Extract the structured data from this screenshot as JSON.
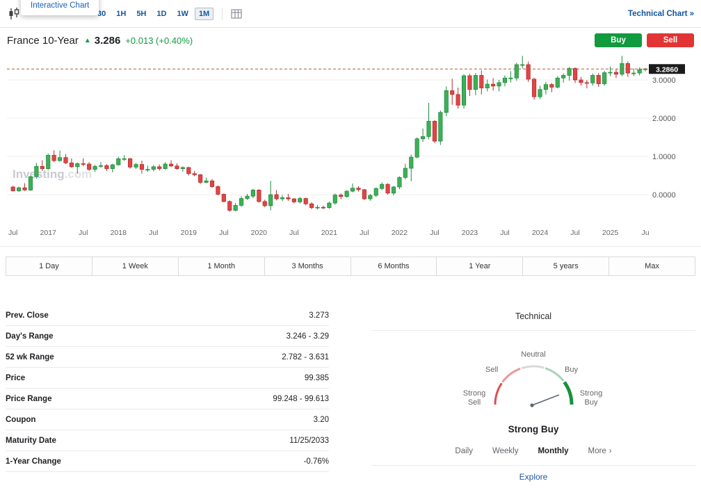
{
  "colors": {
    "link_blue": "#1256a0",
    "buy_green": "#119a3e",
    "sell_red": "#e23434",
    "change_green": "#0f9d45"
  },
  "toolbar": {
    "tooltip": "Interactive Chart",
    "timeframes": [
      "30",
      "1H",
      "5H",
      "1D",
      "1W",
      "1M"
    ],
    "selected_timeframe": "1M",
    "technical_chart_link": "Technical Chart »"
  },
  "header": {
    "title": "France 10-Year",
    "arrow": "▲",
    "price": "3.286",
    "change": "+0.013 (+0.40%)",
    "buy_label": "Buy",
    "sell_label": "Sell"
  },
  "chart_data": {
    "type": "candlestick",
    "title": "France 10-Year monthly yield",
    "watermark_bold": "Investing",
    "watermark_light": ".com",
    "ylim": [
      -0.8,
      3.72
    ],
    "gridlines": [
      0,
      1,
      2,
      3
    ],
    "ytick_labels": [
      "0.0000",
      "1.0000",
      "2.0000",
      "3.0000"
    ],
    "last_price": 3.286,
    "last_price_label": "3.2860",
    "x_ticks": [
      {
        "i": 0,
        "label": "Jul"
      },
      {
        "i": 6,
        "label": "2017"
      },
      {
        "i": 12,
        "label": "Jul"
      },
      {
        "i": 18,
        "label": "2018"
      },
      {
        "i": 24,
        "label": "Jul"
      },
      {
        "i": 30,
        "label": "2019"
      },
      {
        "i": 36,
        "label": "Jul"
      },
      {
        "i": 42,
        "label": "2020"
      },
      {
        "i": 48,
        "label": "Jul"
      },
      {
        "i": 54,
        "label": "2021"
      },
      {
        "i": 60,
        "label": "Jul"
      },
      {
        "i": 66,
        "label": "2022"
      },
      {
        "i": 72,
        "label": "Jul"
      },
      {
        "i": 78,
        "label": "2023"
      },
      {
        "i": 84,
        "label": "Jul"
      },
      {
        "i": 90,
        "label": "2024"
      },
      {
        "i": 96,
        "label": "Jul"
      },
      {
        "i": 102,
        "label": "2025"
      },
      {
        "i": 108,
        "label": "Ju"
      }
    ],
    "candles": [
      [
        0.2,
        0.23,
        0.08,
        0.1
      ],
      [
        0.1,
        0.21,
        0.07,
        0.18
      ],
      [
        0.18,
        0.3,
        0.1,
        0.12
      ],
      [
        0.12,
        0.49,
        0.1,
        0.47
      ],
      [
        0.47,
        0.83,
        0.42,
        0.74
      ],
      [
        0.74,
        0.9,
        0.62,
        0.68
      ],
      [
        0.68,
        1.08,
        0.66,
        1.03
      ],
      [
        1.03,
        1.16,
        0.85,
        0.89
      ],
      [
        0.89,
        1.15,
        0.86,
        0.97
      ],
      [
        0.97,
        1.06,
        0.8,
        0.83
      ],
      [
        0.83,
        0.95,
        0.7,
        0.73
      ],
      [
        0.73,
        0.84,
        0.55,
        0.81
      ],
      [
        0.81,
        0.95,
        0.74,
        0.8
      ],
      [
        0.8,
        0.85,
        0.62,
        0.66
      ],
      [
        0.66,
        0.78,
        0.59,
        0.74
      ],
      [
        0.74,
        0.85,
        0.7,
        0.76
      ],
      [
        0.76,
        0.8,
        0.62,
        0.68
      ],
      [
        0.68,
        0.81,
        0.58,
        0.78
      ],
      [
        0.78,
        0.99,
        0.76,
        0.94
      ],
      [
        0.94,
        1.03,
        0.88,
        0.94
      ],
      [
        0.94,
        0.96,
        0.68,
        0.72
      ],
      [
        0.72,
        0.83,
        0.67,
        0.79
      ],
      [
        0.79,
        0.89,
        0.55,
        0.66
      ],
      [
        0.66,
        0.76,
        0.6,
        0.66
      ],
      [
        0.66,
        0.77,
        0.61,
        0.73
      ],
      [
        0.73,
        0.79,
        0.63,
        0.68
      ],
      [
        0.68,
        0.85,
        0.65,
        0.8
      ],
      [
        0.8,
        0.9,
        0.72,
        0.75
      ],
      [
        0.75,
        0.82,
        0.65,
        0.68
      ],
      [
        0.68,
        0.74,
        0.6,
        0.71
      ],
      [
        0.71,
        0.73,
        0.5,
        0.55
      ],
      [
        0.55,
        0.62,
        0.48,
        0.52
      ],
      [
        0.52,
        0.54,
        0.28,
        0.32
      ],
      [
        0.32,
        0.45,
        0.3,
        0.36
      ],
      [
        0.36,
        0.41,
        0.18,
        0.21
      ],
      [
        0.21,
        0.24,
        -0.02,
        0.01
      ],
      [
        0.01,
        0.03,
        -0.2,
        -0.18
      ],
      [
        -0.18,
        -0.15,
        -0.45,
        -0.41
      ],
      [
        -0.41,
        -0.22,
        -0.44,
        -0.28
      ],
      [
        -0.28,
        -0.04,
        -0.32,
        -0.1
      ],
      [
        -0.1,
        0.02,
        -0.14,
        -0.04
      ],
      [
        -0.04,
        0.15,
        -0.09,
        0.12
      ],
      [
        0.12,
        0.14,
        -0.21,
        -0.18
      ],
      [
        -0.18,
        -0.13,
        -0.33,
        -0.29
      ],
      [
        -0.29,
        0.36,
        -0.41,
        0.0
      ],
      [
        0.0,
        0.12,
        -0.15,
        -0.11
      ],
      [
        -0.11,
        -0.01,
        -0.17,
        -0.08
      ],
      [
        -0.08,
        0.02,
        -0.16,
        -0.11
      ],
      [
        -0.11,
        -0.09,
        -0.23,
        -0.19
      ],
      [
        -0.19,
        -0.06,
        -0.23,
        -0.1
      ],
      [
        -0.1,
        -0.08,
        -0.28,
        -0.24
      ],
      [
        -0.24,
        -0.2,
        -0.38,
        -0.34
      ],
      [
        -0.34,
        -0.27,
        -0.39,
        -0.33
      ],
      [
        -0.33,
        -0.29,
        -0.38,
        -0.34
      ],
      [
        -0.34,
        -0.18,
        -0.37,
        -0.22
      ],
      [
        -0.22,
        0.03,
        -0.26,
        -0.01
      ],
      [
        -0.01,
        0.03,
        -0.12,
        -0.05
      ],
      [
        -0.05,
        0.12,
        -0.08,
        0.09
      ],
      [
        0.09,
        0.29,
        0.06,
        0.17
      ],
      [
        0.17,
        0.22,
        0.08,
        0.13
      ],
      [
        0.13,
        0.15,
        -0.14,
        -0.11
      ],
      [
        -0.11,
        0.02,
        -0.16,
        -0.02
      ],
      [
        -0.02,
        0.19,
        -0.06,
        0.16
      ],
      [
        0.16,
        0.32,
        0.12,
        0.27
      ],
      [
        0.27,
        0.3,
        0.0,
        0.04
      ],
      [
        0.04,
        0.23,
        -0.02,
        0.2
      ],
      [
        0.2,
        0.48,
        0.14,
        0.45
      ],
      [
        0.45,
        0.81,
        0.4,
        0.69
      ],
      [
        0.69,
        1.05,
        0.35,
        0.98
      ],
      [
        0.98,
        1.5,
        0.95,
        1.46
      ],
      [
        1.46,
        1.73,
        1.38,
        1.52
      ],
      [
        1.52,
        2.4,
        1.45,
        1.92
      ],
      [
        1.92,
        1.95,
        1.35,
        1.4
      ],
      [
        1.4,
        2.2,
        1.3,
        2.15
      ],
      [
        2.15,
        2.83,
        2.05,
        2.72
      ],
      [
        2.72,
        3.03,
        2.35,
        2.62
      ],
      [
        2.62,
        2.8,
        2.25,
        2.34
      ],
      [
        2.34,
        3.15,
        2.25,
        3.11
      ],
      [
        3.11,
        3.16,
        2.58,
        2.75
      ],
      [
        2.75,
        3.18,
        2.6,
        3.12
      ],
      [
        3.12,
        3.25,
        2.62,
        2.79
      ],
      [
        2.79,
        3.01,
        2.7,
        2.89
      ],
      [
        2.89,
        3.05,
        2.72,
        2.84
      ],
      [
        2.84,
        3.0,
        2.7,
        2.93
      ],
      [
        2.93,
        3.12,
        2.83,
        3.05
      ],
      [
        3.05,
        3.23,
        2.93,
        3.05
      ],
      [
        3.05,
        3.45,
        2.98,
        3.4
      ],
      [
        3.4,
        3.63,
        3.3,
        3.4
      ],
      [
        3.4,
        3.48,
        2.95,
        3.02
      ],
      [
        3.02,
        3.06,
        2.48,
        2.56
      ],
      [
        2.56,
        2.85,
        2.5,
        2.75
      ],
      [
        2.75,
        2.95,
        2.62,
        2.88
      ],
      [
        2.88,
        2.92,
        2.68,
        2.81
      ],
      [
        2.81,
        3.1,
        2.78,
        3.05
      ],
      [
        3.05,
        3.17,
        2.93,
        3.12
      ],
      [
        3.12,
        3.34,
        2.98,
        3.3
      ],
      [
        3.3,
        3.33,
        2.92,
        3.0
      ],
      [
        3.0,
        3.08,
        2.85,
        2.93
      ],
      [
        2.93,
        3.0,
        2.78,
        2.92
      ],
      [
        2.92,
        3.17,
        2.85,
        3.12
      ],
      [
        3.12,
        3.18,
        2.82,
        2.9
      ],
      [
        2.9,
        3.24,
        2.85,
        3.19
      ],
      [
        3.19,
        3.35,
        3.1,
        3.2
      ],
      [
        3.2,
        3.28,
        3.05,
        3.15
      ],
      [
        3.15,
        3.63,
        3.1,
        3.43
      ],
      [
        3.43,
        3.48,
        3.08,
        3.18
      ],
      [
        3.18,
        3.3,
        3.1,
        3.18
      ],
      [
        3.18,
        3.33,
        3.12,
        3.27
      ],
      [
        3.27,
        3.31,
        3.22,
        3.29
      ]
    ],
    "colors": {
      "up": "#3db057",
      "up_stroke": "#208a3c",
      "down": "#e14545",
      "down_stroke": "#b52b2b",
      "price_line": "#ad5a35",
      "price_tag_bg": "#1b1b1b"
    }
  },
  "ranges": [
    "1 Day",
    "1 Week",
    "1 Month",
    "3 Months",
    "6 Months",
    "1 Year",
    "5 years",
    "Max"
  ],
  "overview": {
    "rows": [
      {
        "label": "Prev. Close",
        "value": "3.273"
      },
      {
        "label": "Day's Range",
        "value": "3.246 - 3.29"
      },
      {
        "label": "52 wk Range",
        "value": "2.782 - 3.631"
      },
      {
        "label": "Price",
        "value": "99.385"
      },
      {
        "label": "Price Range",
        "value": "99.248 - 99.613"
      },
      {
        "label": "Coupon",
        "value": "3.20"
      },
      {
        "label": "Maturity Date",
        "value": "11/25/2033"
      },
      {
        "label": "1-Year Change",
        "value": "-0.76%"
      }
    ]
  },
  "technical": {
    "title": "Technical",
    "gauge_labels": {
      "neutral": "Neutral",
      "sell": "Sell",
      "buy": "Buy",
      "strong_sell": "Strong Sell",
      "strong_buy": "Strong Buy"
    },
    "summary": "Strong Buy",
    "tabs": [
      "Daily",
      "Weekly",
      "Monthly"
    ],
    "selected_tab": "Monthly",
    "more_label": "More",
    "more_chevron": "›",
    "explore_label": "Explore"
  }
}
